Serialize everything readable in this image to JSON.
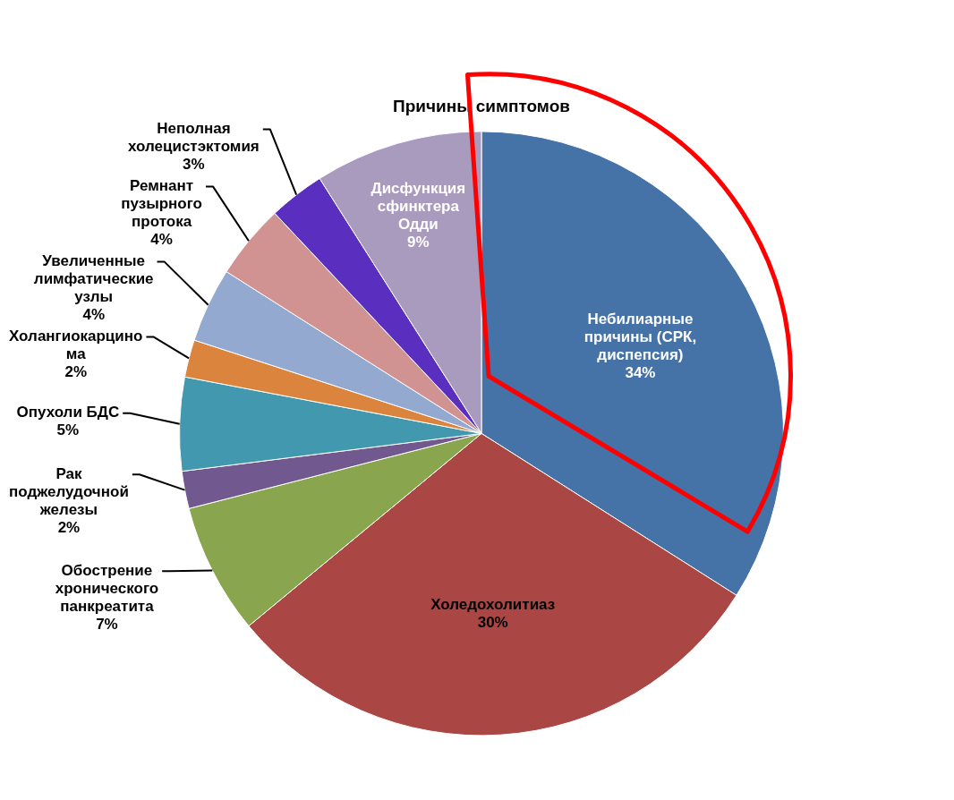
{
  "chart_data": {
    "type": "pie",
    "title": "Причины симптомов",
    "categories": [
      "Небилиарные причины (СРК, диспепсия)",
      "Холедохолитиаз",
      "Обострение хронического панкреатита",
      "Рак поджелудочной железы",
      "Опухоли БДС",
      "Холангиокарцинома",
      "Увеличенные лимфатические узлы",
      "Ремнант пузырного протока",
      "Неполная холецистэктомия",
      "Дисфункция сфинктера Одди"
    ],
    "values": [
      34,
      30,
      7,
      2,
      5,
      2,
      4,
      4,
      3,
      9
    ],
    "value_labels": [
      "34%",
      "30%",
      "7%",
      "2%",
      "5%",
      "2%",
      "4%",
      "4%",
      "3%",
      "9%"
    ],
    "colors": [
      "#4572a7",
      "#aa4643",
      "#89a54e",
      "#71588f",
      "#4198af",
      "#db843d",
      "#93a9cf",
      "#d19392",
      "#5a2fbf",
      "#a99bbd"
    ],
    "legend": false
  }
}
